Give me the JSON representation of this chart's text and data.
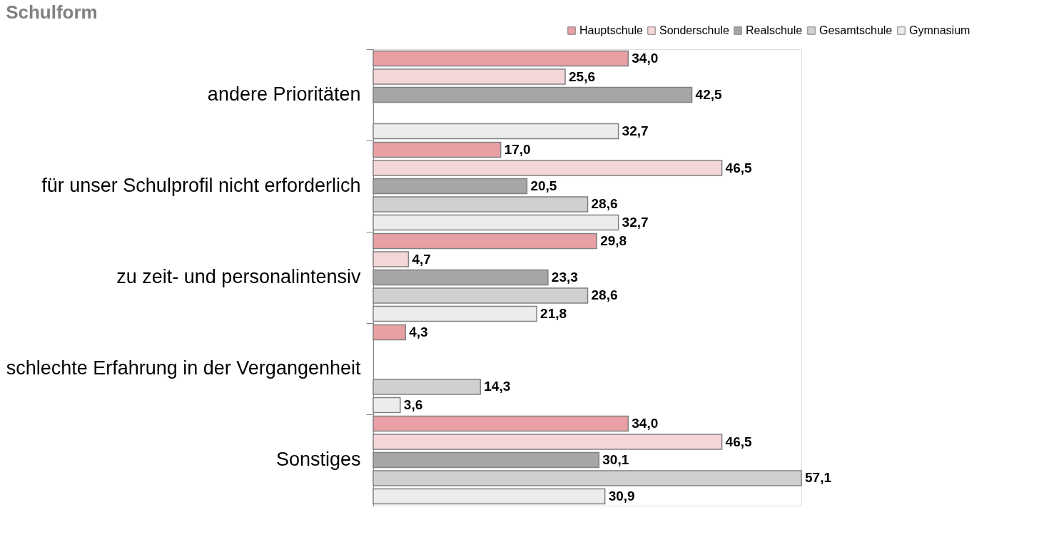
{
  "chart_data": {
    "type": "bar",
    "orientation": "horizontal",
    "title": "Schulform",
    "categories": [
      "andere Prioritäten",
      "für unser Schulprofil nicht erforderlich",
      "zu zeit- und personalintensiv",
      "schlechte Erfahrung in der Vergangenheit",
      "Sonstiges"
    ],
    "series": [
      {
        "name": "Hauptschule",
        "color": "#e8a0a4",
        "values": [
          34.0,
          17.0,
          29.8,
          4.3,
          34.0
        ],
        "value_labels": [
          "34,0",
          "17,0",
          "29,8",
          "4,3",
          "34,0"
        ]
      },
      {
        "name": "Sonderschule",
        "color": "#f5d6d8",
        "values": [
          25.6,
          46.5,
          4.7,
          null,
          46.5
        ],
        "value_labels": [
          "25,6",
          "46,5",
          "4,7",
          null,
          "46,5"
        ]
      },
      {
        "name": "Realschule",
        "color": "#a6a6a6",
        "values": [
          42.5,
          20.5,
          23.3,
          null,
          30.1
        ],
        "value_labels": [
          "42,5",
          "20,5",
          "23,3",
          null,
          "30,1"
        ]
      },
      {
        "name": "Gesamtschule",
        "color": "#d0d0d0",
        "values": [
          null,
          28.6,
          28.6,
          14.3,
          57.1
        ],
        "value_labels": [
          null,
          "28,6",
          "28,6",
          "14,3",
          "57,1"
        ]
      },
      {
        "name": "Gymnasium",
        "color": "#ececec",
        "values": [
          32.7,
          32.7,
          21.8,
          3.6,
          30.9
        ],
        "value_labels": [
          "32,7",
          "32,7",
          "21,8",
          "3,6",
          "30,9"
        ]
      }
    ],
    "legend": "top right"
  }
}
